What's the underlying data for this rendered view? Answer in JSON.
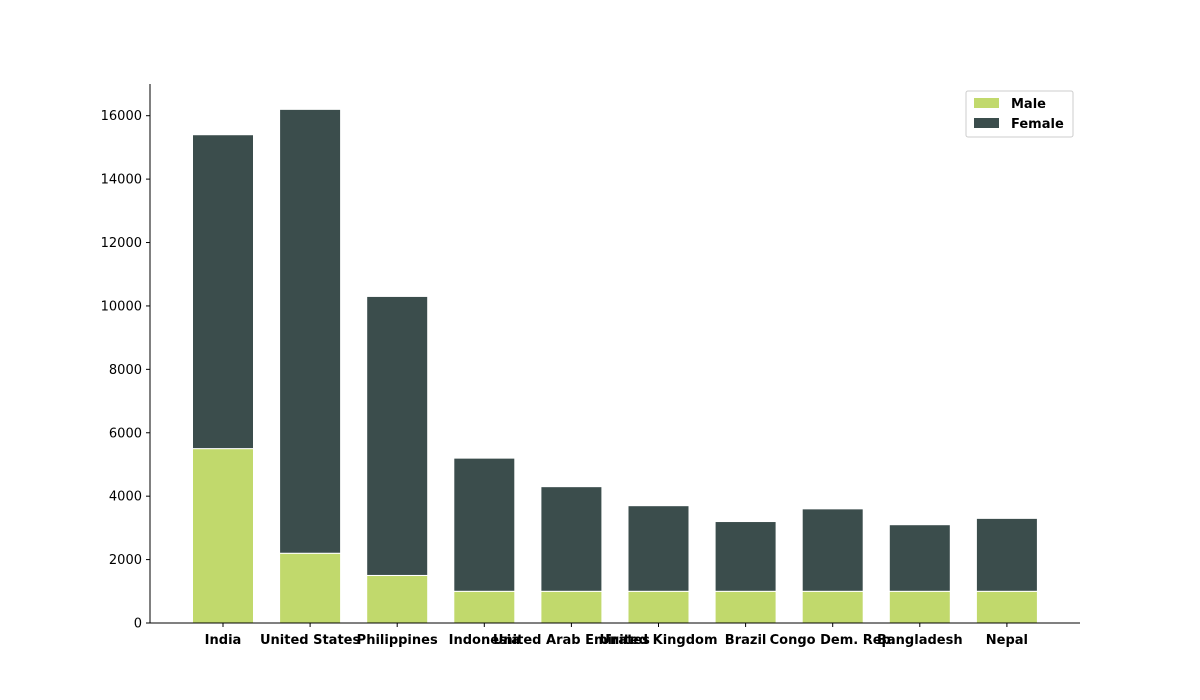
{
  "chart_data": {
    "type": "bar",
    "stacked": true,
    "categories": [
      "India",
      "United States",
      "Philippines",
      "Indonesia",
      "United Arab Emirates",
      "United Kingdom",
      "Brazil",
      "Congo Dem. Rep.",
      "Bangladesh",
      "Nepal"
    ],
    "series": [
      {
        "name": "Male",
        "color": "#c1d96c",
        "values": [
          5500,
          2200,
          1500,
          1000,
          1000,
          1000,
          1000,
          1000,
          1000,
          1000
        ]
      },
      {
        "name": "Female",
        "color": "#3b4d4c",
        "values": [
          9900,
          14000,
          8800,
          4200,
          3300,
          2700,
          2200,
          2600,
          2100,
          2300
        ]
      }
    ],
    "yticks": [
      "0",
      "2000",
      "4000",
      "6000",
      "8000",
      "10000",
      "12000",
      "14000",
      "16000"
    ],
    "ylim": [
      0,
      17000
    ],
    "grid": false,
    "legend_position": "top-right"
  }
}
